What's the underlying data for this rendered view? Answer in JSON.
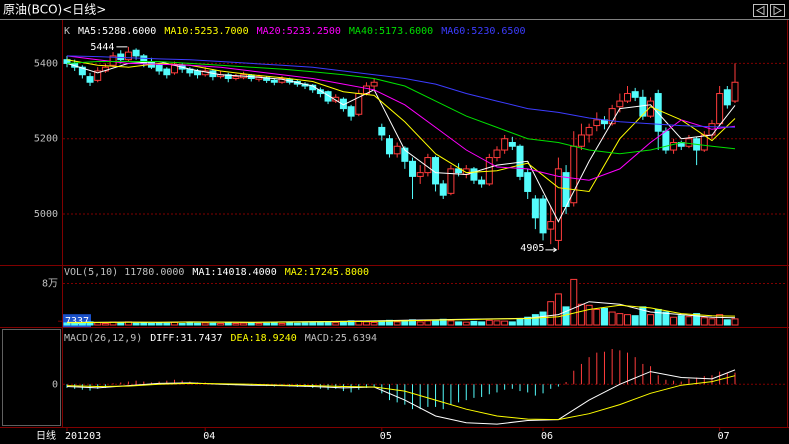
{
  "chart_data": [
    {
      "type": "candlestick",
      "title": "原油(BCO)<日线>",
      "prefix": "K",
      "period_label": "日线",
      "categories": [
        "201203",
        null,
        null,
        null,
        null,
        null,
        null,
        null,
        null,
        null,
        null,
        null,
        null,
        null,
        null,
        null,
        null,
        null,
        "04",
        null,
        null,
        null,
        null,
        null,
        null,
        null,
        null,
        null,
        null,
        null,
        null,
        null,
        null,
        null,
        null,
        null,
        null,
        null,
        null,
        null,
        null,
        "05",
        null,
        null,
        null,
        null,
        null,
        null,
        null,
        null,
        null,
        null,
        null,
        null,
        null,
        null,
        null,
        null,
        null,
        null,
        null,
        null,
        "06",
        null,
        null,
        null,
        null,
        null,
        null,
        null,
        null,
        null,
        null,
        null,
        null,
        null,
        null,
        null,
        null,
        null,
        null,
        null,
        null,
        null,
        null,
        "07",
        null,
        null
      ],
      "ohlc": [
        [
          5410,
          5420,
          5390,
          5400
        ],
        [
          5400,
          5410,
          5380,
          5390
        ],
        [
          5390,
          5395,
          5360,
          5370
        ],
        [
          5365,
          5375,
          5340,
          5350
        ],
        [
          5355,
          5390,
          5350,
          5380
        ],
        [
          5380,
          5400,
          5375,
          5390
        ],
        [
          5395,
          5430,
          5390,
          5420
        ],
        [
          5425,
          5435,
          5400,
          5410
        ],
        [
          5410,
          5444,
          5405,
          5430
        ],
        [
          5435,
          5440,
          5410,
          5420
        ],
        [
          5420,
          5425,
          5390,
          5400
        ],
        [
          5405,
          5415,
          5385,
          5390
        ],
        [
          5395,
          5400,
          5370,
          5380
        ],
        [
          5385,
          5390,
          5360,
          5370
        ],
        [
          5375,
          5405,
          5370,
          5395
        ],
        [
          5395,
          5400,
          5375,
          5385
        ],
        [
          5385,
          5390,
          5365,
          5375
        ],
        [
          5380,
          5385,
          5360,
          5370
        ],
        [
          5370,
          5390,
          5365,
          5380
        ],
        [
          5380,
          5385,
          5355,
          5365
        ],
        [
          5365,
          5380,
          5360,
          5370
        ],
        [
          5370,
          5375,
          5350,
          5360
        ],
        [
          5360,
          5372,
          5355,
          5365
        ],
        [
          5362,
          5378,
          5358,
          5370
        ],
        [
          5368,
          5372,
          5352,
          5360
        ],
        [
          5358,
          5370,
          5352,
          5365
        ],
        [
          5362,
          5366,
          5348,
          5355
        ],
        [
          5355,
          5360,
          5342,
          5350
        ],
        [
          5350,
          5366,
          5346,
          5360
        ],
        [
          5358,
          5362,
          5344,
          5350
        ],
        [
          5352,
          5356,
          5338,
          5345
        ],
        [
          5345,
          5350,
          5332,
          5340
        ],
        [
          5342,
          5345,
          5322,
          5330
        ],
        [
          5330,
          5336,
          5310,
          5320
        ],
        [
          5325,
          5328,
          5292,
          5300
        ],
        [
          5300,
          5318,
          5295,
          5310
        ],
        [
          5305,
          5310,
          5272,
          5280
        ],
        [
          5285,
          5290,
          5248,
          5260
        ],
        [
          5265,
          5330,
          5260,
          5320
        ],
        [
          5320,
          5350,
          5315,
          5340
        ],
        [
          5340,
          5360,
          5330,
          5350
        ],
        [
          5230,
          5240,
          5195,
          5210
        ],
        [
          5200,
          5210,
          5150,
          5160
        ],
        [
          5160,
          5190,
          5150,
          5180
        ],
        [
          5175,
          5180,
          5120,
          5140
        ],
        [
          5140,
          5150,
          5040,
          5100
        ],
        [
          5100,
          5130,
          5080,
          5110
        ],
        [
          5110,
          5160,
          5100,
          5150
        ],
        [
          5150,
          5155,
          5060,
          5080
        ],
        [
          5080,
          5090,
          5040,
          5050
        ],
        [
          5055,
          5130,
          5050,
          5120
        ],
        [
          5120,
          5135,
          5100,
          5110
        ],
        [
          5105,
          5130,
          5095,
          5120
        ],
        [
          5120,
          5125,
          5080,
          5090
        ],
        [
          5090,
          5100,
          5070,
          5080
        ],
        [
          5080,
          5160,
          5075,
          5150
        ],
        [
          5150,
          5180,
          5140,
          5170
        ],
        [
          5170,
          5210,
          5160,
          5200
        ],
        [
          5190,
          5205,
          5170,
          5180
        ],
        [
          5180,
          5185,
          5090,
          5100
        ],
        [
          5110,
          5120,
          5040,
          5060
        ],
        [
          5040,
          5050,
          4960,
          4990
        ],
        [
          5040,
          5050,
          4930,
          4950
        ],
        [
          4960,
          5020,
          4920,
          4980
        ],
        [
          4930,
          5150,
          4905,
          5120
        ],
        [
          5110,
          5130,
          5000,
          5020
        ],
        [
          5030,
          5220,
          5020,
          5180
        ],
        [
          5180,
          5240,
          5170,
          5210
        ],
        [
          5210,
          5240,
          5190,
          5230
        ],
        [
          5235,
          5270,
          5220,
          5250
        ],
        [
          5250,
          5260,
          5225,
          5240
        ],
        [
          5240,
          5290,
          5235,
          5280
        ],
        [
          5285,
          5320,
          5270,
          5300
        ],
        [
          5300,
          5340,
          5295,
          5320
        ],
        [
          5325,
          5335,
          5300,
          5310
        ],
        [
          5310,
          5330,
          5250,
          5260
        ],
        [
          5260,
          5310,
          5255,
          5300
        ],
        [
          5320,
          5330,
          5170,
          5220
        ],
        [
          5220,
          5230,
          5160,
          5170
        ],
        [
          5170,
          5200,
          5160,
          5190
        ],
        [
          5190,
          5195,
          5170,
          5180
        ],
        [
          5180,
          5210,
          5175,
          5200
        ],
        [
          5200,
          5205,
          5130,
          5170
        ],
        [
          5170,
          5220,
          5165,
          5210
        ],
        [
          5210,
          5250,
          5200,
          5240
        ],
        [
          5240,
          5340,
          5235,
          5320
        ],
        [
          5330,
          5340,
          5280,
          5290
        ],
        [
          5300,
          5400,
          5295,
          5350
        ]
      ],
      "colors": {
        "up": "#ff3c3c",
        "down": "#54fcfc"
      },
      "ylim": [
        4870,
        5510
      ],
      "yticks": [
        5000,
        5200,
        5400
      ],
      "grid": true,
      "high_label": 5444,
      "low_label": 4905,
      "lines": {
        "x": [
          0,
          4,
          8,
          12,
          16,
          20,
          24,
          28,
          32,
          36,
          40,
          44,
          48,
          52,
          56,
          60,
          64,
          68,
          72,
          76,
          80,
          84,
          87
        ],
        "series": [
          {
            "label": "MA5:5288.6000",
            "color": "#ffffff",
            "values": [
              5400,
              5375,
              5400,
              5405,
              5385,
              5370,
              5365,
              5358,
              5340,
              5290,
              5330,
              5170,
              5110,
              5105,
              5130,
              5140,
              4980,
              5140,
              5280,
              5290,
              5200,
              5210,
              5288.6
            ]
          },
          {
            "label": "MA10:5253.7000",
            "color": "#ffff00",
            "values": [
              5410,
              5395,
              5390,
              5400,
              5395,
              5380,
              5370,
              5362,
              5352,
              5325,
              5315,
              5245,
              5160,
              5110,
              5115,
              5135,
              5070,
              5060,
              5200,
              5285,
              5250,
              5195,
              5253.7
            ]
          },
          {
            "label": "MA20:5233.2500",
            "color": "#ff00ff",
            "values": [
              5420,
              5410,
              5400,
              5398,
              5395,
              5390,
              5380,
              5370,
              5360,
              5345,
              5330,
              5290,
              5230,
              5170,
              5125,
              5120,
              5100,
              5090,
              5120,
              5190,
              5250,
              5225,
              5233.25
            ]
          },
          {
            "label": "MA40:5173.6000",
            "color": "#00e000",
            "values": [
              5400,
              5405,
              5405,
              5405,
              5400,
              5395,
              5390,
              5385,
              5378,
              5370,
              5360,
              5340,
              5300,
              5260,
              5230,
              5200,
              5190,
              5170,
              5160,
              5170,
              5190,
              5180,
              5173.6
            ]
          },
          {
            "label": "MA60:5230.6500",
            "color": "#3c3cff",
            "values": [
              5420,
              5418,
              5415,
              5412,
              5410,
              5405,
              5400,
              5395,
              5390,
              5380,
              5370,
              5360,
              5345,
              5320,
              5300,
              5280,
              5270,
              5255,
              5245,
              5240,
              5235,
              5232,
              5230.65
            ]
          }
        ]
      }
    },
    {
      "type": "volume",
      "prefix": "VOL(5,10) 11780.0000",
      "values": [
        4000,
        3500,
        5000,
        6000,
        4500,
        3000,
        5500,
        4000,
        6000,
        3500,
        4500,
        3000,
        4000,
        3500,
        5000,
        3000,
        4000,
        3500,
        4000,
        3500,
        3000,
        4500,
        3000,
        3500,
        4000,
        3000,
        3500,
        4000,
        3000,
        4500,
        3500,
        4000,
        5000,
        5500,
        6000,
        4500,
        7000,
        8000,
        7500,
        6000,
        5000,
        8000,
        9000,
        6000,
        7000,
        10000,
        6000,
        8000,
        9000,
        11000,
        8000,
        6000,
        5500,
        7000,
        6000,
        9000,
        8000,
        7500,
        6000,
        12000,
        15000,
        20000,
        25000,
        45000,
        60000,
        35000,
        88000,
        40000,
        38000,
        30000,
        32000,
        25000,
        22000,
        20000,
        18000,
        35000,
        20000,
        30000,
        25000,
        15000,
        18000,
        16000,
        22000,
        14000,
        12000,
        20000,
        10000,
        11780
      ],
      "ylim": [
        0,
        110000
      ],
      "yticks": [
        7337,
        {
          "value": 80000,
          "label": "8万"
        }
      ],
      "grid": true,
      "lines": {
        "x": [
          0,
          4,
          8,
          12,
          16,
          20,
          24,
          28,
          32,
          36,
          40,
          44,
          48,
          52,
          56,
          60,
          64,
          68,
          72,
          76,
          80,
          84,
          87
        ],
        "series": [
          {
            "label": "MA1:14018.4000",
            "color": "#ffffff",
            "values": [
              5000,
              5000,
              5500,
              5000,
              6000,
              5500,
              5000,
              6000,
              6500,
              7000,
              8000,
              9000,
              10000,
              11000,
              12000,
              13000,
              20000,
              45000,
              40000,
              25000,
              20000,
              15000,
              14018.4
            ]
          },
          {
            "label": "MA2:17245.8000",
            "color": "#ffff00",
            "values": [
              4500,
              5000,
              5200,
              5300,
              5500,
              5500,
              5400,
              5600,
              6000,
              6500,
              7000,
              8000,
              9500,
              10500,
              11500,
              12500,
              16000,
              30000,
              38000,
              33000,
              22000,
              18000,
              17245.8
            ]
          }
        ]
      }
    },
    {
      "type": "macd",
      "prefix": "MACD(26,12,9)",
      "label": "MACD:25.6394",
      "values": [
        -8,
        -10,
        -12,
        -14,
        -10,
        -8,
        2,
        4,
        6,
        8,
        6,
        4,
        6,
        8,
        10,
        8,
        6,
        4,
        4,
        2,
        0,
        -2,
        -2,
        0,
        -2,
        -3,
        -4,
        -5,
        -4,
        -5,
        -6,
        -6,
        -8,
        -10,
        -12,
        -10,
        -15,
        -18,
        -12,
        -8,
        -6,
        -20,
        -35,
        -40,
        -45,
        -55,
        -55,
        -50,
        -50,
        -55,
        -45,
        -40,
        -35,
        -30,
        -28,
        -22,
        -18,
        -12,
        -10,
        -15,
        -18,
        -25,
        -20,
        -10,
        -5,
        5,
        30,
        45,
        60,
        70,
        72,
        78,
        75,
        70,
        60,
        45,
        40,
        20,
        10,
        8,
        6,
        12,
        15,
        18,
        20,
        28,
        24,
        25.6394
      ],
      "colors": {
        "up": "#ff3c3c",
        "down": "#54fcfc"
      },
      "ylim": [
        -90,
        120
      ],
      "yticks": [
        0
      ],
      "grid": true,
      "lines": {
        "x": [
          0,
          4,
          8,
          12,
          16,
          20,
          24,
          28,
          32,
          36,
          40,
          44,
          48,
          52,
          56,
          60,
          64,
          68,
          72,
          76,
          80,
          84,
          87
        ],
        "series": [
          {
            "label": "DIFF:31.7437",
            "color": "#ffffff",
            "values": [
              -5,
              -8,
              -3,
              2,
              3,
              0,
              -2,
              -3,
              -5,
              -8,
              -6,
              -35,
              -70,
              -85,
              -88,
              -80,
              -78,
              -35,
              0,
              28,
              15,
              12,
              31.7437
            ]
          },
          {
            "label": "DEA:18.9240",
            "color": "#ffff00",
            "values": [
              -3,
              -5,
              -4,
              0,
              2,
              1,
              0,
              -2,
              -3,
              -5,
              -6,
              -15,
              -35,
              -55,
              -70,
              -77,
              -78,
              -65,
              -45,
              -20,
              -2,
              6,
              18.924
            ]
          }
        ]
      }
    }
  ]
}
